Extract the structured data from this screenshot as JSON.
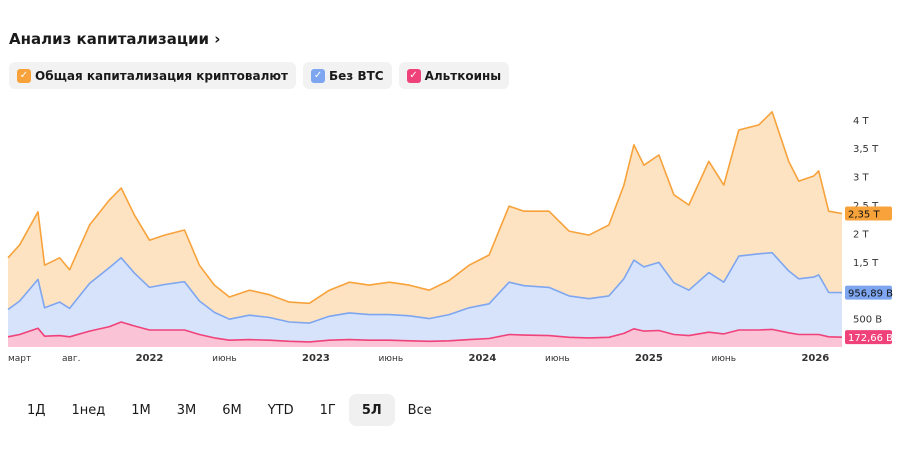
{
  "title": "Анализ капитализации",
  "legend": [
    {
      "label": "Общая капитализация криптовалют",
      "color": "#f7a23b"
    },
    {
      "label": "Без BTC",
      "color": "#7ea6f0"
    },
    {
      "label": "Альткоины",
      "color": "#f0427a"
    }
  ],
  "ranges": [
    "1Д",
    "1нед",
    "1М",
    "3М",
    "6М",
    "YTD",
    "1Г",
    "5Л",
    "Все"
  ],
  "active_range": "5Л",
  "chart_data": {
    "type": "area",
    "ylim": [
      0,
      4.3
    ],
    "yunit": "T",
    "yticks": [
      {
        "v": 0.5,
        "label": "500 B"
      },
      {
        "v": 1.5,
        "label": "1,5 T"
      },
      {
        "v": 2,
        "label": "2 T"
      },
      {
        "v": 2.5,
        "label": "2,5 T"
      },
      {
        "v": 3,
        "label": "3 T"
      },
      {
        "v": 3.5,
        "label": "3,5 T"
      },
      {
        "v": 4,
        "label": "4 T"
      }
    ],
    "xticks": [
      {
        "t": 2021.15,
        "label": "март",
        "bold": false
      },
      {
        "t": 2021.53,
        "label": "авг.",
        "bold": false
      },
      {
        "t": 2022,
        "label": "2022",
        "bold": true
      },
      {
        "t": 2022.45,
        "label": "июнь",
        "bold": false
      },
      {
        "t": 2023,
        "label": "2023",
        "bold": true
      },
      {
        "t": 2023.45,
        "label": "июнь",
        "bold": false
      },
      {
        "t": 2024,
        "label": "2024",
        "bold": true
      },
      {
        "t": 2024.45,
        "label": "июнь",
        "bold": false
      },
      {
        "t": 2025,
        "label": "2025",
        "bold": true
      },
      {
        "t": 2025.45,
        "label": "июнь",
        "bold": false
      },
      {
        "t": 2026,
        "label": "2026",
        "bold": true
      }
    ],
    "xlim": [
      2021.15,
      2026.16
    ],
    "x": [
      2021.15,
      2021.22,
      2021.33,
      2021.37,
      2021.46,
      2021.52,
      2021.64,
      2021.76,
      2021.83,
      2021.91,
      2022.0,
      2022.09,
      2022.21,
      2022.3,
      2022.39,
      2022.48,
      2022.6,
      2022.72,
      2022.84,
      2022.96,
      2023.08,
      2023.2,
      2023.32,
      2023.44,
      2023.56,
      2023.68,
      2023.8,
      2023.92,
      2024.04,
      2024.16,
      2024.25,
      2024.4,
      2024.52,
      2024.64,
      2024.76,
      2024.85,
      2024.91,
      2024.97,
      2025.06,
      2025.15,
      2025.24,
      2025.36,
      2025.45,
      2025.54,
      2025.66,
      2025.74,
      2025.84,
      2025.9,
      2025.99,
      2026.02,
      2026.08,
      2026.16
    ],
    "series": [
      {
        "name": "Общая капитализация криптовалют",
        "color": "#f7a23b",
        "fill": "#fde3c2",
        "last_label": "2,35 T",
        "values": [
          1.57,
          1.8,
          2.38,
          1.44,
          1.57,
          1.36,
          2.15,
          2.59,
          2.8,
          2.32,
          1.88,
          1.97,
          2.06,
          1.44,
          1.09,
          0.88,
          1.0,
          0.92,
          0.79,
          0.77,
          1.0,
          1.14,
          1.09,
          1.14,
          1.09,
          1.0,
          1.17,
          1.44,
          1.62,
          2.48,
          2.39,
          2.39,
          2.04,
          1.97,
          2.15,
          2.85,
          3.56,
          3.2,
          3.38,
          2.68,
          2.5,
          3.27,
          2.85,
          3.82,
          3.91,
          4.14,
          3.27,
          2.92,
          3.01,
          3.1,
          2.39,
          2.35
        ]
      },
      {
        "name": "Без BTC",
        "color": "#7ea6f0",
        "fill": "#d6e3fb",
        "last_label": "956,89 B",
        "values": [
          0.66,
          0.81,
          1.19,
          0.69,
          0.79,
          0.68,
          1.12,
          1.4,
          1.57,
          1.3,
          1.05,
          1.1,
          1.15,
          0.81,
          0.61,
          0.49,
          0.56,
          0.52,
          0.44,
          0.42,
          0.54,
          0.6,
          0.57,
          0.57,
          0.55,
          0.5,
          0.57,
          0.69,
          0.76,
          1.14,
          1.08,
          1.05,
          0.9,
          0.85,
          0.9,
          1.2,
          1.53,
          1.41,
          1.49,
          1.13,
          1.0,
          1.31,
          1.14,
          1.6,
          1.64,
          1.66,
          1.34,
          1.2,
          1.23,
          1.27,
          0.96,
          0.957
        ]
      },
      {
        "name": "Альткоины",
        "color": "#f0427a",
        "fill": "#fbc3d6",
        "last_label": "172,66 B",
        "values": [
          0.18,
          0.22,
          0.33,
          0.19,
          0.2,
          0.18,
          0.28,
          0.36,
          0.44,
          0.37,
          0.3,
          0.3,
          0.3,
          0.22,
          0.16,
          0.12,
          0.13,
          0.12,
          0.1,
          0.09,
          0.12,
          0.13,
          0.12,
          0.12,
          0.11,
          0.1,
          0.11,
          0.13,
          0.15,
          0.22,
          0.21,
          0.2,
          0.17,
          0.16,
          0.17,
          0.24,
          0.32,
          0.28,
          0.29,
          0.22,
          0.2,
          0.26,
          0.23,
          0.3,
          0.3,
          0.31,
          0.25,
          0.22,
          0.22,
          0.22,
          0.18,
          0.173
        ]
      }
    ]
  }
}
